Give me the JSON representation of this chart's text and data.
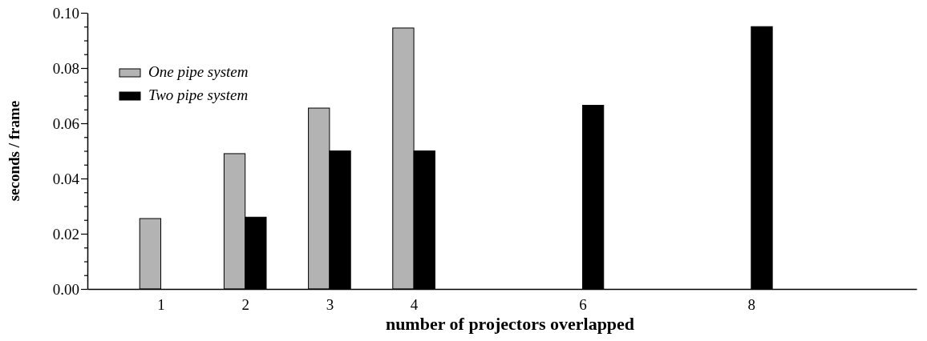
{
  "chart_data": {
    "type": "bar",
    "xlabel": "number of projectors overlapped",
    "ylabel": "seconds / frame",
    "x": [
      1,
      2,
      3,
      4,
      6,
      8
    ],
    "series": [
      {
        "name": "One pipe system",
        "color": "#b3b3b3",
        "values": [
          0.0255,
          0.049,
          0.0655,
          0.0945,
          null,
          null
        ]
      },
      {
        "name": "Two pipe system",
        "color": "#000000",
        "values": [
          null,
          0.026,
          0.05,
          0.05,
          0.0665,
          0.095
        ]
      }
    ],
    "xlim": [
      0.13,
      9.96
    ],
    "xticks": [
      1,
      2,
      3,
      4,
      6,
      8
    ],
    "ylim": [
      0,
      0.1
    ],
    "yticks": [
      {
        "value": 0,
        "label": "0.00"
      },
      {
        "value": 0.005,
        "label": null
      },
      {
        "value": 0.01,
        "label": null
      },
      {
        "value": 0.015,
        "label": null
      },
      {
        "value": 0.02,
        "label": "0.02"
      },
      {
        "value": 0.025,
        "label": null
      },
      {
        "value": 0.03,
        "label": null
      },
      {
        "value": 0.035,
        "label": null
      },
      {
        "value": 0.04,
        "label": "0.04"
      },
      {
        "value": 0.045,
        "label": null
      },
      {
        "value": 0.05,
        "label": null
      },
      {
        "value": 0.055,
        "label": null
      },
      {
        "value": 0.06,
        "label": "0.06"
      },
      {
        "value": 0.065,
        "label": null
      },
      {
        "value": 0.07,
        "label": null
      },
      {
        "value": 0.075,
        "label": null
      },
      {
        "value": 0.08,
        "label": "0.08"
      },
      {
        "value": 0.085,
        "label": null
      },
      {
        "value": 0.09,
        "label": null
      },
      {
        "value": 0.095,
        "label": null
      },
      {
        "value": 0.1,
        "label": "0.10"
      }
    ],
    "grid": false,
    "legend": "top left"
  }
}
